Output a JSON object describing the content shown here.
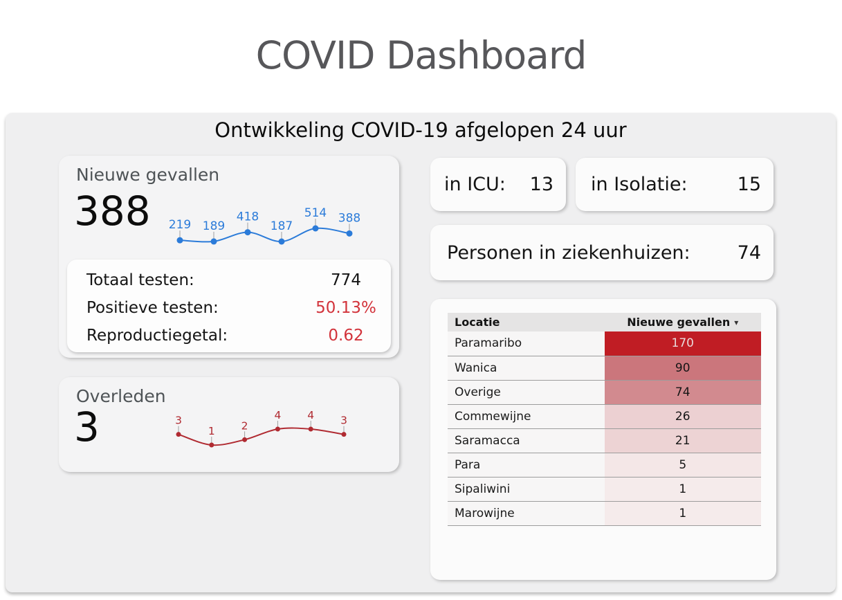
{
  "page": {
    "title": "COVID Dashboard",
    "section_title": "Ontwikkeling COVID-19 afgelopen 24 uur"
  },
  "colors": {
    "accent_blue": "#2b7bd9",
    "accent_red": "#d2333b",
    "dark_red": "#b02a31",
    "leader_gray": "#9e9e9e"
  },
  "cards": {
    "nieuwe_gevallen": {
      "label": "Nieuwe gevallen",
      "value": "388"
    },
    "stats": [
      {
        "label": "Totaal testen:",
        "value": "774",
        "value_color": "#141414"
      },
      {
        "label": "Positieve testen:",
        "value": "50.13%",
        "value_color": "#d2333b"
      },
      {
        "label": "Reproductiegetal:",
        "value": "0.62",
        "value_color": "#d2333b"
      }
    ],
    "overleden": {
      "label": "Overleden",
      "value": "3"
    },
    "icu": {
      "label": "in ICU:",
      "value": "13"
    },
    "isolatie": {
      "label": "in Isolatie:",
      "value": "15"
    },
    "ziekenhuizen": {
      "label": "Personen in ziekenhuizen:",
      "value": "74"
    }
  },
  "table": {
    "columns": [
      "Locatie",
      "Nieuwe gevallen"
    ],
    "sort_icon": "▾",
    "sorted_by": "Nieuwe gevallen",
    "rows": [
      {
        "location": "Paramaribo",
        "value": "170",
        "cell_color": "#c01d24",
        "text_color": "#e9dada"
      },
      {
        "location": "Wanica",
        "value": "90",
        "cell_color": "#cb767c",
        "text_color": "#151515"
      },
      {
        "location": "Overige",
        "value": "74",
        "cell_color": "#d28a8f",
        "text_color": "#151515"
      },
      {
        "location": "Commewijne",
        "value": "26",
        "cell_color": "#ecd0d2",
        "text_color": "#151515"
      },
      {
        "location": "Saramacca",
        "value": "21",
        "cell_color": "#edd3d4",
        "text_color": "#151515"
      },
      {
        "location": "Para",
        "value": "5",
        "cell_color": "#f4e7e7",
        "text_color": "#151515"
      },
      {
        "location": "Sipaliwini",
        "value": "1",
        "cell_color": "#f5ebeb",
        "text_color": "#151515"
      },
      {
        "location": "Marowijne",
        "value": "1",
        "cell_color": "#f5ebeb",
        "text_color": "#151515"
      }
    ]
  },
  "chart_data": [
    {
      "type": "line",
      "series_name": "nieuwe-gevallen-sparkline",
      "values": [
        219,
        189,
        418,
        187,
        514,
        388
      ],
      "point_labels": [
        "219",
        "189",
        "418",
        "187",
        "514",
        "388"
      ],
      "color": "#2b7bd9",
      "leader_color": "#9e9e9e",
      "grid": false,
      "legend": false
    },
    {
      "type": "line",
      "series_name": "overleden-sparkline",
      "values": [
        3,
        1,
        2,
        4,
        4,
        3
      ],
      "point_labels": [
        "3",
        "1",
        "2",
        "4",
        "4",
        "3"
      ],
      "color": "#b02a31",
      "leader_color": "#9e9e9e",
      "grid": false,
      "legend": false
    }
  ]
}
